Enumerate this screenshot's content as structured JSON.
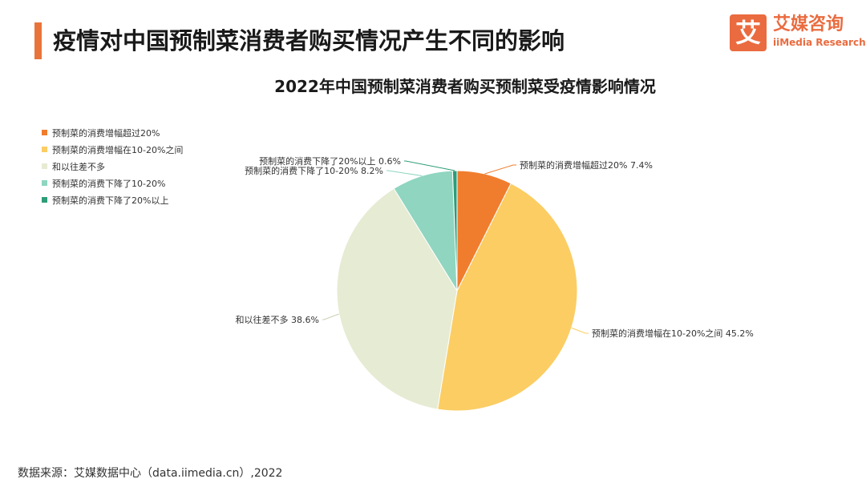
{
  "header": {
    "title": "疫情对中国预制菜消费者购买情况产生不同的影响",
    "accent_color": "#e8743b"
  },
  "logo": {
    "mark": "艾",
    "name_cn": "艾媒咨询",
    "name_en": "iiMedia Research",
    "color": "#ea6b3f"
  },
  "footer": {
    "source": "数据来源：艾媒数据中心（data.iimedia.cn）,2022"
  },
  "chart_data": {
    "type": "pie",
    "title": "2022年中国预制菜消费者购买预制菜受疫情影响情况",
    "legend_position": "top-left",
    "series": [
      {
        "label": "预制菜的消费增幅超过20%",
        "value": 7.4,
        "display": "7.4%",
        "color": "#f07d2e"
      },
      {
        "label": "预制菜的消费增幅在10-20%之间",
        "value": 45.2,
        "display": "45.2%",
        "color": "#fbcd63"
      },
      {
        "label": "和以往差不多",
        "value": 38.6,
        "display": "38.6%",
        "color": "#e6ebd3"
      },
      {
        "label": "预制菜的消费下降了10-20%",
        "value": 8.2,
        "display": "8.2%",
        "color": "#8fd5c0"
      },
      {
        "label": "预制菜的消费下降了20%以上",
        "value": 0.6,
        "display": "0.6%",
        "color": "#2e9c78"
      }
    ]
  }
}
